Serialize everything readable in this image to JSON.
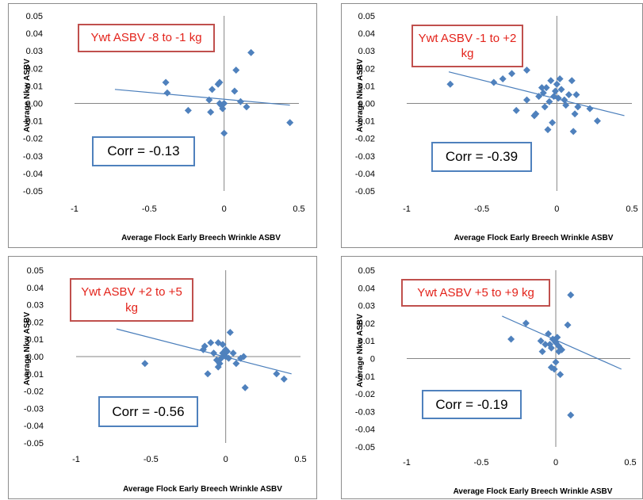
{
  "chart_data": [
    {
      "type": "scatter",
      "title": "Ywt ASBV -8 to -1 kg",
      "annotation": "Corr = -0.13",
      "xlabel": "Average Flock Early Breech Wrinkle ASBV",
      "ylabel": "Average Nkw ASBV",
      "xlim": [
        -1,
        0.5
      ],
      "ylim": [
        -0.05,
        0.05
      ],
      "xticks": [
        "-1",
        "-0.5",
        "0",
        "0.5"
      ],
      "yticks": [
        "0.05",
        "0.04",
        "0.03",
        "0.02",
        "0.01",
        "0.00",
        "-0.01",
        "-0.02",
        "-0.03",
        "-0.04",
        "-0.05"
      ],
      "marker_color": "#4f81bd",
      "trendline": {
        "x": [
          -0.73,
          0.44
        ],
        "y": [
          0.008,
          -0.001
        ]
      },
      "points": [
        [
          -0.39,
          0.012
        ],
        [
          -0.38,
          0.006
        ],
        [
          -0.24,
          -0.004
        ],
        [
          -0.1,
          0.002
        ],
        [
          -0.09,
          -0.005
        ],
        [
          -0.08,
          0.008
        ],
        [
          -0.04,
          0.011
        ],
        [
          -0.03,
          0.012
        ],
        [
          -0.03,
          0.0
        ],
        [
          -0.02,
          -0.001
        ],
        [
          -0.01,
          -0.003
        ],
        [
          0.0,
          0.0
        ],
        [
          0.0,
          -0.017
        ],
        [
          0.07,
          0.007
        ],
        [
          0.08,
          0.019
        ],
        [
          0.11,
          0.001
        ],
        [
          0.15,
          -0.002
        ],
        [
          0.18,
          0.029
        ],
        [
          0.44,
          -0.011
        ]
      ]
    },
    {
      "type": "scatter",
      "title": "Ywt ASBV -1 to +2 kg",
      "annotation": "Corr = -0.39",
      "xlabel": "Average Flock Early Breech Wrinkle ASBV",
      "ylabel": "Average Nkw ASBV",
      "xlim": [
        -1,
        0.5
      ],
      "ylim": [
        -0.05,
        0.05
      ],
      "xticks": [
        "-1",
        "-0.5",
        "0",
        "0.5"
      ],
      "yticks": [
        "0.05",
        "0.04",
        "0.03",
        "0.02",
        "0.01",
        "0.00",
        "-0.01",
        "-0.02",
        "-0.03",
        "-0.04",
        "-0.05"
      ],
      "marker_color": "#4f81bd",
      "trendline": {
        "x": [
          -0.72,
          0.45
        ],
        "y": [
          0.018,
          -0.007
        ]
      },
      "points": [
        [
          -0.71,
          0.011
        ],
        [
          -0.42,
          0.012
        ],
        [
          -0.36,
          0.014
        ],
        [
          -0.3,
          0.017
        ],
        [
          -0.27,
          -0.004
        ],
        [
          -0.2,
          0.019
        ],
        [
          -0.2,
          0.002
        ],
        [
          -0.15,
          -0.007
        ],
        [
          -0.14,
          -0.006
        ],
        [
          -0.12,
          0.004
        ],
        [
          -0.1,
          0.009
        ],
        [
          -0.09,
          0.006
        ],
        [
          -0.08,
          -0.002
        ],
        [
          -0.07,
          0.009
        ],
        [
          -0.06,
          -0.015
        ],
        [
          -0.05,
          0.001
        ],
        [
          -0.04,
          0.013
        ],
        [
          -0.03,
          -0.011
        ],
        [
          -0.02,
          0.004
        ],
        [
          -0.01,
          0.007
        ],
        [
          0.0,
          0.011
        ],
        [
          0.01,
          0.003
        ],
        [
          0.02,
          0.014
        ],
        [
          0.03,
          0.008
        ],
        [
          0.05,
          0.002
        ],
        [
          0.06,
          -0.001
        ],
        [
          0.08,
          0.005
        ],
        [
          0.1,
          0.013
        ],
        [
          0.11,
          -0.016
        ],
        [
          0.12,
          -0.006
        ],
        [
          0.13,
          0.005
        ],
        [
          0.14,
          -0.002
        ],
        [
          0.22,
          -0.003
        ],
        [
          0.27,
          -0.01
        ]
      ]
    },
    {
      "type": "scatter",
      "title": "Ywt ASBV +2 to +5 kg",
      "annotation": "Corr = -0.56",
      "xlabel": "Average Flock Early Breech Wrinkle ASBV",
      "ylabel": "Average Nkw ASBV",
      "xlim": [
        -1,
        0.5
      ],
      "ylim": [
        -0.05,
        0.05
      ],
      "xticks": [
        "-1",
        "-0.5",
        "0",
        "0.5"
      ],
      "yticks": [
        "0.05",
        "0.04",
        "0.03",
        "0.02",
        "0.01",
        "0.00",
        "-0.01",
        "-0.02",
        "-0.03",
        "-0.04",
        "-0.05"
      ],
      "marker_color": "#4f81bd",
      "trendline": {
        "x": [
          -0.73,
          0.44
        ],
        "y": [
          0.016,
          -0.01
        ]
      },
      "points": [
        [
          -0.54,
          -0.004
        ],
        [
          -0.15,
          0.004
        ],
        [
          -0.14,
          0.006
        ],
        [
          -0.12,
          -0.01
        ],
        [
          -0.1,
          0.008
        ],
        [
          -0.08,
          0.002
        ],
        [
          -0.06,
          -0.002
        ],
        [
          -0.05,
          -0.006
        ],
        [
          -0.05,
          0.008
        ],
        [
          -0.04,
          -0.004
        ],
        [
          -0.03,
          -0.001
        ],
        [
          -0.02,
          0.002
        ],
        [
          -0.02,
          0.007
        ],
        [
          0.0,
          0.004
        ],
        [
          0.0,
          0.0
        ],
        [
          0.01,
          0.003
        ],
        [
          0.02,
          -0.001
        ],
        [
          0.03,
          0.014
        ],
        [
          0.05,
          0.002
        ],
        [
          0.07,
          -0.004
        ],
        [
          0.1,
          -0.001
        ],
        [
          0.13,
          -0.018
        ],
        [
          0.12,
          0.0
        ],
        [
          0.34,
          -0.01
        ],
        [
          0.39,
          -0.013
        ]
      ]
    },
    {
      "type": "scatter",
      "title": "Ywt ASBV +5 to +9 kg",
      "annotation": "Corr = -0.19",
      "xlabel": "Average Flock Early Breech Wrinkle ASBV",
      "ylabel": "Average Nkw ASBV",
      "xlim": [
        -1,
        0.5
      ],
      "ylim": [
        -0.05,
        0.05
      ],
      "xticks": [
        "-1",
        "-0.5",
        "0",
        "0.5"
      ],
      "yticks": [
        "0.05",
        "0.04",
        "0.03",
        "0.02",
        "0.01",
        "0",
        "-0.01",
        "-0.02",
        "-0.03",
        "-0.04",
        "-0.05"
      ],
      "marker_color": "#4f81bd",
      "trendline": {
        "x": [
          -0.36,
          0.44
        ],
        "y": [
          0.024,
          -0.006
        ]
      },
      "points": [
        [
          -0.3,
          0.011
        ],
        [
          -0.2,
          0.02
        ],
        [
          -0.1,
          0.01
        ],
        [
          -0.09,
          0.004
        ],
        [
          -0.07,
          0.008
        ],
        [
          -0.05,
          0.014
        ],
        [
          -0.04,
          0.008
        ],
        [
          -0.03,
          0.006
        ],
        [
          -0.03,
          -0.005
        ],
        [
          -0.02,
          0.011
        ],
        [
          -0.01,
          -0.006
        ],
        [
          0.0,
          0.009
        ],
        [
          0.0,
          -0.002
        ],
        [
          0.01,
          0.012
        ],
        [
          0.02,
          0.007
        ],
        [
          0.02,
          0.004
        ],
        [
          0.03,
          -0.009
        ],
        [
          0.04,
          0.005
        ],
        [
          0.08,
          0.019
        ],
        [
          0.1,
          0.036
        ],
        [
          0.1,
          -0.032
        ]
      ]
    }
  ]
}
